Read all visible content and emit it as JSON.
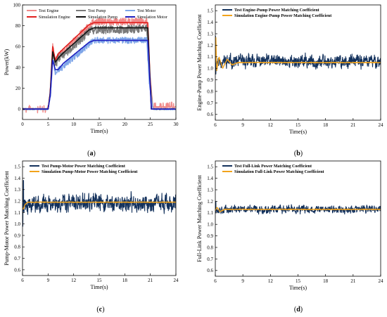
{
  "chart_data": [
    {
      "panel": "(a)",
      "type": "line",
      "xlabel": "Time(s)",
      "ylabel": "Power(kW)",
      "xlim": [
        0,
        30
      ],
      "ylim": [
        -10,
        100
      ],
      "xticks": [
        0,
        5,
        10,
        15,
        20,
        25,
        30
      ],
      "yticks": [
        0,
        20,
        40,
        60,
        80,
        100
      ],
      "legend_position": "top",
      "series": [
        {
          "name": "Test Engine",
          "color": "#f08a8a",
          "style": "noisy",
          "noise": 3.5,
          "x": [
            0,
            5,
            5.5,
            5.9,
            6.4,
            7.0,
            8.0,
            13.0,
            14.0,
            24.3,
            24.8,
            25.5,
            30
          ],
          "y": [
            0,
            0,
            20,
            60,
            45,
            52,
            55,
            80,
            84,
            84,
            40,
            2,
            2
          ]
        },
        {
          "name": "Test Pump",
          "color": "#7a7a7a",
          "style": "noisy",
          "noise": 4,
          "x": [
            0,
            5,
            5.5,
            5.9,
            6.4,
            7.0,
            8.0,
            13.0,
            14.0,
            24.3,
            24.8,
            25.5,
            30
          ],
          "y": [
            0,
            0,
            18,
            57,
            42,
            48,
            52,
            74,
            76,
            77,
            35,
            0,
            0
          ]
        },
        {
          "name": "Test Motor",
          "color": "#7fa6e8",
          "style": "noisy",
          "noise": 3,
          "x": [
            0,
            5,
            5.5,
            5.9,
            6.4,
            7.0,
            8.0,
            13.0,
            14.0,
            24.3,
            24.8,
            25.5,
            30
          ],
          "y": [
            0,
            0,
            14,
            48,
            36,
            37,
            41,
            62,
            66,
            66,
            25,
            0,
            0
          ]
        },
        {
          "name": "Simulation Engine",
          "color": "#e0201e",
          "style": "smooth",
          "x": [
            0,
            5,
            5.4,
            5.9,
            6.4,
            7.0,
            8.0,
            13.0,
            14.0,
            24.5,
            25.2,
            30
          ],
          "y": [
            0,
            0,
            15,
            60,
            47,
            53,
            58,
            81,
            83,
            83,
            0,
            0
          ]
        },
        {
          "name": "Simulation Pump",
          "color": "#111111",
          "style": "smooth",
          "x": [
            0,
            5,
            5.4,
            5.9,
            6.4,
            7.0,
            8.0,
            13.0,
            14.0,
            24.5,
            25.2,
            30
          ],
          "y": [
            0,
            0,
            14,
            55,
            45,
            49,
            54,
            76,
            78,
            78,
            0,
            0
          ]
        },
        {
          "name": "Simulation Motor",
          "color": "#2020c0",
          "style": "smooth",
          "x": [
            0,
            5,
            5.4,
            5.9,
            6.4,
            7.0,
            8.0,
            13.0,
            14.0,
            24.5,
            25.2,
            30
          ],
          "y": [
            0,
            0,
            12,
            47,
            38,
            38,
            44,
            64,
            66,
            66,
            0,
            0
          ]
        }
      ]
    },
    {
      "panel": "(b)",
      "type": "line",
      "xlabel": "Time(s)",
      "ylabel": "Engine-Pump Power Matching Coefficient",
      "xlim": [
        6,
        24
      ],
      "ylim": [
        0.55,
        1.55
      ],
      "xticks": [
        6,
        9,
        12,
        15,
        18,
        21,
        24
      ],
      "yticks": [
        0.6,
        0.7,
        0.8,
        0.9,
        1.0,
        1.1,
        1.2,
        1.3,
        1.4,
        1.5
      ],
      "legend_position": "top-left",
      "series": [
        {
          "name": "Test Engine-Pump Power Matching Coefficient",
          "color": "#13315c",
          "style": "noisy",
          "mean": 1.06,
          "noise": 0.05,
          "seed": 11,
          "spikes": [
            [
              6.02,
              1.28
            ],
            [
              6.05,
              0.95
            ]
          ]
        },
        {
          "name": "Simulation Engine-Pump Power Matching Coefficient",
          "color": "#f2a31b",
          "style": "settle",
          "final": 1.05,
          "x": [
            6,
            6.05,
            6.15,
            6.4,
            6.8,
            7.3,
            7.8,
            8.5,
            24
          ],
          "y": [
            1.05,
            1.3,
            0.98,
            1.1,
            1.0,
            1.08,
            1.03,
            1.05,
            1.05
          ]
        }
      ]
    },
    {
      "panel": "(c)",
      "type": "line",
      "xlabel": "Time(s)",
      "ylabel": "Pump-Motor Power Matching Coefficient",
      "xlim": [
        6,
        24
      ],
      "ylim": [
        0.55,
        1.55
      ],
      "xticks": [
        6,
        9,
        12,
        15,
        18,
        21,
        24
      ],
      "yticks": [
        0.6,
        0.7,
        0.8,
        0.9,
        1.0,
        1.1,
        1.2,
        1.3,
        1.4,
        1.5
      ],
      "legend_position": "top-left",
      "series": [
        {
          "name": "Test Pump-Motor Power Matching Coefficient",
          "color": "#13315c",
          "style": "noisy",
          "mean": 1.18,
          "noise": 0.065,
          "seed": 23,
          "spikes": [
            [
              6.02,
              0.98
            ],
            [
              6.1,
              1.38
            ]
          ]
        },
        {
          "name": "Simulation Pump-Motor Power Matching Coefficient",
          "color": "#f2a31b",
          "style": "settle",
          "final": 1.19,
          "x": [
            6,
            6.1,
            6.3,
            6.6,
            24
          ],
          "y": [
            1.14,
            1.13,
            1.17,
            1.19,
            1.19
          ]
        }
      ]
    },
    {
      "panel": "(d)",
      "type": "line",
      "xlabel": "Time(s)",
      "ylabel": "Full-Link Power Matching Coefficient",
      "xlim": [
        6,
        24
      ],
      "ylim": [
        0.55,
        1.55
      ],
      "xticks": [
        6,
        9,
        12,
        15,
        18,
        21,
        24
      ],
      "yticks": [
        0.6,
        0.7,
        0.8,
        0.9,
        1.0,
        1.1,
        1.2,
        1.3,
        1.4,
        1.5
      ],
      "legend_position": "top-left",
      "series": [
        {
          "name": "Test Full-Link Power Matching Coefficient",
          "color": "#13315c",
          "style": "noisy",
          "mean": 1.13,
          "noise": 0.03,
          "seed": 37,
          "spikes": [
            [
              6.05,
              1.2
            ]
          ]
        },
        {
          "name": "Simulation Full-Link Power Matching Coefficient",
          "color": "#f2a31b",
          "style": "settle",
          "final": 1.13,
          "x": [
            6,
            6.2,
            6.5,
            7.0,
            7.5,
            24
          ],
          "y": [
            1.12,
            1.15,
            1.11,
            1.13,
            1.13,
            1.13
          ]
        }
      ]
    }
  ]
}
